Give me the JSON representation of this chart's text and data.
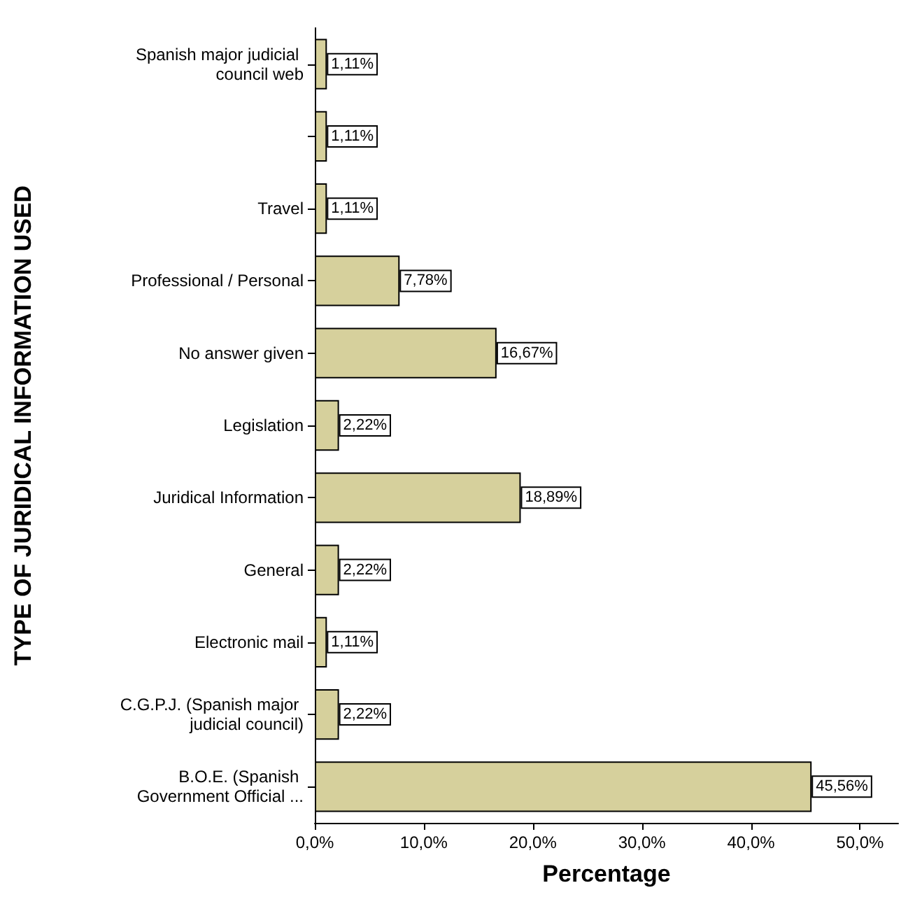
{
  "chart_data": {
    "type": "bar",
    "orientation": "horizontal",
    "xlabel": "Percentage",
    "ylabel": "TYPE OF JURIDICAL INFORMATION USED",
    "categories": [
      "Spanish major judicial council web",
      null,
      "Travel",
      "Professional / Personal",
      "No answer given",
      "Legislation",
      "Juridical Information",
      "General",
      "Electronic mail",
      "C.G.P.J. (Spanish major judicial council)",
      "B.O.E. (Spanish Government Official ..."
    ],
    "values": [
      1.11,
      1.11,
      1.11,
      7.78,
      16.67,
      2.22,
      18.89,
      2.22,
      1.11,
      2.22,
      45.56
    ],
    "value_labels": [
      "1,11%",
      "1,11%",
      "1,11%",
      "7,78%",
      "16,67%",
      "2,22%",
      "18,89%",
      "2,22%",
      "1,11%",
      "2,22%",
      "45,56%"
    ],
    "color": "#d6d09c",
    "xlim": [
      0,
      53.5
    ],
    "xticks": [
      {
        "value": 0,
        "label": "0,0%"
      },
      {
        "value": 10,
        "label": "10,0%"
      },
      {
        "value": 20,
        "label": "20,0%"
      },
      {
        "value": 30,
        "label": "30,0%"
      },
      {
        "value": 40,
        "label": "40,0%"
      },
      {
        "value": 50,
        "label": "50,0%"
      }
    ],
    "grid": false
  }
}
